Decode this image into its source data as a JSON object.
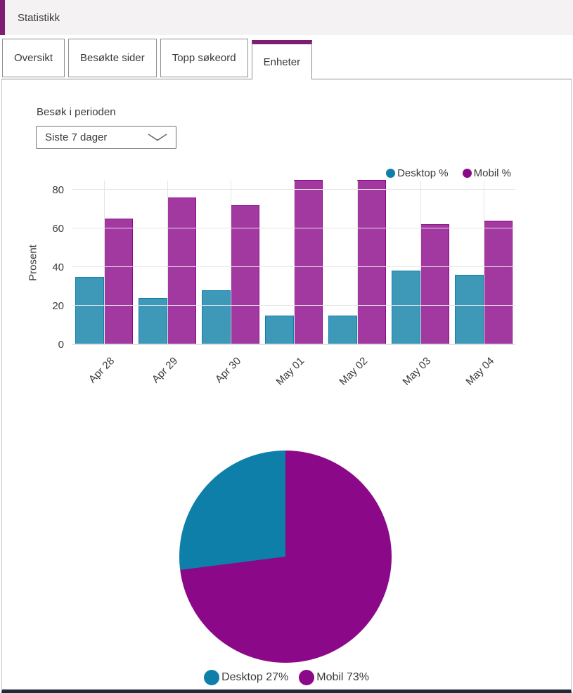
{
  "header": {
    "title": "Statistikk"
  },
  "tabs": [
    {
      "id": "oversikt",
      "label": "Oversikt",
      "active": false
    },
    {
      "id": "besokte-sider",
      "label": "Besøkte sider",
      "active": false
    },
    {
      "id": "topp-sokeord",
      "label": "Topp søkeord",
      "active": false
    },
    {
      "id": "enheter",
      "label": "Enheter",
      "active": true
    }
  ],
  "filter": {
    "label": "Besøk i perioden",
    "selected": "Siste 7 dager"
  },
  "colors": {
    "accent": "#7f1c73",
    "desktop": "#0e7fa8",
    "mobil": "#8b0889",
    "desktop_bar_fill": "rgba(14,127,168,0.8)",
    "mobil_bar_fill": "rgba(139,8,137,0.8)",
    "header_bg": "#f5f2f4",
    "grid": "#e6e6e6"
  },
  "chart_data": [
    {
      "type": "bar",
      "title": "",
      "categories": [
        "Apr 28",
        "Apr 29",
        "Apr 30",
        "May 01",
        "May 02",
        "May 03",
        "May 04"
      ],
      "series": [
        {
          "name": "Desktop %",
          "color_key": "desktop",
          "values": [
            35,
            24,
            28,
            15,
            15,
            38,
            36
          ]
        },
        {
          "name": "Mobil %",
          "color_key": "mobil",
          "values": [
            65,
            76,
            72,
            85,
            85,
            62,
            64
          ]
        }
      ],
      "xlabel": "",
      "ylabel": "Prosent",
      "yticks": [
        0,
        20,
        40,
        60,
        80
      ],
      "ylim": [
        0,
        85
      ],
      "grid": true,
      "legend_position": "top-right"
    },
    {
      "type": "pie",
      "slices": [
        {
          "label": "Desktop",
          "pct": 27,
          "color_key": "desktop"
        },
        {
          "label": "Mobil",
          "pct": 73,
          "color_key": "mobil"
        }
      ],
      "clockwise_from_top_order": [
        "Mobil",
        "Desktop"
      ],
      "legend_position": "bottom-center"
    }
  ]
}
